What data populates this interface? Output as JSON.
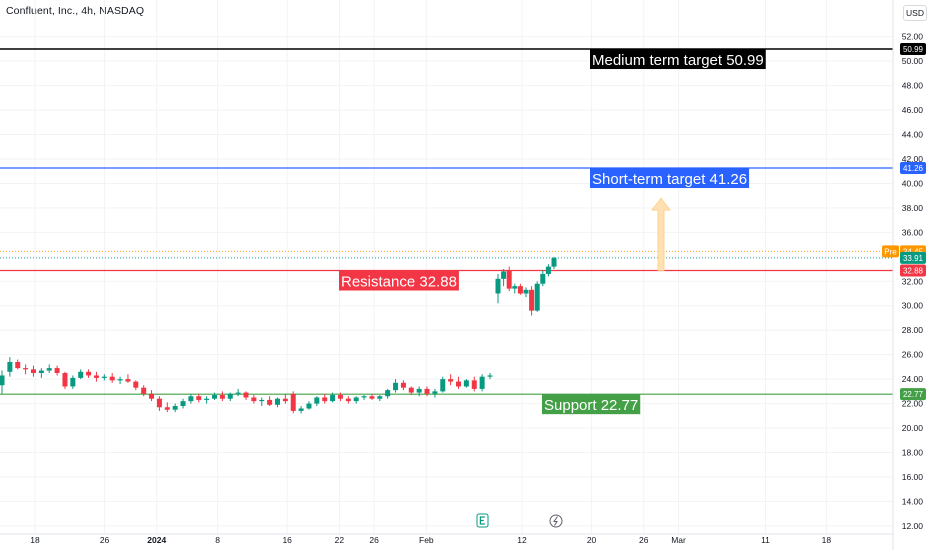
{
  "header": {
    "title": "Confluent, Inc., 4h, NASDAQ",
    "currency_button": "USD"
  },
  "chart_data": {
    "type": "candlestick",
    "title": "Confluent, Inc., 4h, NASDAQ",
    "y_ticks": [
      "52.00",
      "50.00",
      "48.00",
      "46.00",
      "44.00",
      "42.00",
      "40.00",
      "38.00",
      "36.00",
      "34.00",
      "32.00",
      "30.00",
      "28.00",
      "26.00",
      "24.00",
      "22.00",
      "20.00",
      "18.00",
      "16.00",
      "14.00",
      "12.00"
    ],
    "ylim": [
      11.5,
      53.2
    ],
    "x_labels": [
      {
        "label": "18",
        "date": "2023-12-18"
      },
      {
        "label": "26",
        "date": "2023-12-26"
      },
      {
        "label": "2024",
        "date": "2024-01-01"
      },
      {
        "label": "8",
        "date": "2024-01-08"
      },
      {
        "label": "16",
        "date": "2024-01-16"
      },
      {
        "label": "22",
        "date": "2024-01-22"
      },
      {
        "label": "26",
        "date": "2024-01-26"
      },
      {
        "label": "Feb",
        "date": "2024-02-01"
      },
      {
        "label": "12",
        "date": "2024-02-12"
      },
      {
        "label": "20",
        "date": "2024-02-20"
      },
      {
        "label": "26",
        "date": "2024-02-26"
      },
      {
        "label": "Mar",
        "date": "2024-03-01"
      },
      {
        "label": "11",
        "date": "2024-03-11"
      },
      {
        "label": "18",
        "date": "2024-03-18"
      }
    ],
    "lines": [
      {
        "name": "medium-target",
        "value": 50.99,
        "color": "#000000",
        "tag": "50.99",
        "annotation": "Medium term target 50.99"
      },
      {
        "name": "short-target",
        "value": 41.26,
        "color": "#2962ff",
        "tag": "41.26",
        "annotation": "Short-term target 41.26"
      },
      {
        "name": "resistance",
        "value": 32.88,
        "color": "#f23645",
        "tag": "32.88",
        "annotation": "Resistance 32.88"
      },
      {
        "name": "support",
        "value": 22.77,
        "color": "#43a047",
        "tag": "22.77",
        "annotation": "Support 22.77"
      }
    ],
    "price_tags": [
      {
        "name": "pre-market",
        "label": "Pre",
        "value": 34.45,
        "color": "#ff9800"
      },
      {
        "name": "last-price",
        "value": 33.91,
        "color": "#089981"
      }
    ],
    "candles": [
      {
        "o": 23.5,
        "h": 24.7,
        "l": 22.8,
        "c": 24.3
      },
      {
        "o": 24.6,
        "h": 25.8,
        "l": 24.2,
        "c": 25.4
      },
      {
        "o": 25.4,
        "h": 25.6,
        "l": 24.8,
        "c": 24.9
      },
      {
        "o": 24.9,
        "h": 25.2,
        "l": 24.4,
        "c": 24.8
      },
      {
        "o": 24.8,
        "h": 25.1,
        "l": 24.2,
        "c": 24.5
      },
      {
        "o": 24.5,
        "h": 24.9,
        "l": 24.1,
        "c": 24.7
      },
      {
        "o": 24.7,
        "h": 25.2,
        "l": 24.5,
        "c": 24.9
      },
      {
        "o": 24.9,
        "h": 25.1,
        "l": 24.3,
        "c": 24.5
      },
      {
        "o": 24.5,
        "h": 24.6,
        "l": 23.2,
        "c": 23.4
      },
      {
        "o": 23.4,
        "h": 24.3,
        "l": 23.2,
        "c": 24.1
      },
      {
        "o": 24.1,
        "h": 24.8,
        "l": 24.0,
        "c": 24.6
      },
      {
        "o": 24.6,
        "h": 24.8,
        "l": 24.1,
        "c": 24.3
      },
      {
        "o": 24.3,
        "h": 24.6,
        "l": 23.8,
        "c": 24.1
      },
      {
        "o": 24.1,
        "h": 24.4,
        "l": 23.9,
        "c": 24.2
      },
      {
        "o": 24.2,
        "h": 24.5,
        "l": 23.7,
        "c": 23.9
      },
      {
        "o": 23.9,
        "h": 24.2,
        "l": 23.6,
        "c": 24.0
      },
      {
        "o": 24.0,
        "h": 24.4,
        "l": 23.7,
        "c": 23.8
      },
      {
        "o": 23.8,
        "h": 23.9,
        "l": 23.1,
        "c": 23.3
      },
      {
        "o": 23.3,
        "h": 23.5,
        "l": 22.6,
        "c": 22.8
      },
      {
        "o": 22.8,
        "h": 23.1,
        "l": 22.2,
        "c": 22.4
      },
      {
        "o": 22.4,
        "h": 22.6,
        "l": 21.4,
        "c": 21.7
      },
      {
        "o": 21.7,
        "h": 22.1,
        "l": 21.3,
        "c": 21.5
      },
      {
        "o": 21.5,
        "h": 22.0,
        "l": 21.3,
        "c": 21.8
      },
      {
        "o": 21.8,
        "h": 22.4,
        "l": 21.6,
        "c": 22.2
      },
      {
        "o": 22.2,
        "h": 22.8,
        "l": 22.0,
        "c": 22.6
      },
      {
        "o": 22.6,
        "h": 22.8,
        "l": 22.1,
        "c": 22.3
      },
      {
        "o": 22.3,
        "h": 22.6,
        "l": 22.0,
        "c": 22.4
      },
      {
        "o": 22.4,
        "h": 22.9,
        "l": 22.3,
        "c": 22.7
      },
      {
        "o": 22.7,
        "h": 23.0,
        "l": 22.2,
        "c": 22.4
      },
      {
        "o": 22.4,
        "h": 22.9,
        "l": 22.2,
        "c": 22.8
      },
      {
        "o": 22.8,
        "h": 23.2,
        "l": 22.6,
        "c": 22.9
      },
      {
        "o": 22.9,
        "h": 23.0,
        "l": 22.3,
        "c": 22.5
      },
      {
        "o": 22.5,
        "h": 22.7,
        "l": 22.0,
        "c": 22.2
      },
      {
        "o": 22.2,
        "h": 22.5,
        "l": 21.8,
        "c": 22.3
      },
      {
        "o": 22.3,
        "h": 22.6,
        "l": 21.8,
        "c": 21.9
      },
      {
        "o": 21.9,
        "h": 22.5,
        "l": 21.7,
        "c": 22.4
      },
      {
        "o": 22.4,
        "h": 22.8,
        "l": 22.0,
        "c": 22.2
      },
      {
        "o": 22.8,
        "h": 23.0,
        "l": 21.2,
        "c": 21.4
      },
      {
        "o": 21.4,
        "h": 21.8,
        "l": 21.2,
        "c": 21.6
      },
      {
        "o": 21.6,
        "h": 22.2,
        "l": 21.5,
        "c": 22.0
      },
      {
        "o": 22.0,
        "h": 22.6,
        "l": 21.8,
        "c": 22.5
      },
      {
        "o": 22.5,
        "h": 22.8,
        "l": 22.0,
        "c": 22.2
      },
      {
        "o": 22.2,
        "h": 22.9,
        "l": 22.1,
        "c": 22.7
      },
      {
        "o": 22.7,
        "h": 22.9,
        "l": 22.2,
        "c": 22.4
      },
      {
        "o": 22.4,
        "h": 22.6,
        "l": 22.0,
        "c": 22.2
      },
      {
        "o": 22.2,
        "h": 22.6,
        "l": 22.0,
        "c": 22.5
      },
      {
        "o": 22.5,
        "h": 22.7,
        "l": 22.3,
        "c": 22.6
      },
      {
        "o": 22.6,
        "h": 22.8,
        "l": 22.3,
        "c": 22.4
      },
      {
        "o": 22.4,
        "h": 22.7,
        "l": 22.2,
        "c": 22.6
      },
      {
        "o": 22.6,
        "h": 23.2,
        "l": 22.4,
        "c": 23.1
      },
      {
        "o": 23.1,
        "h": 24.0,
        "l": 22.9,
        "c": 23.7
      },
      {
        "o": 23.7,
        "h": 23.9,
        "l": 23.1,
        "c": 23.3
      },
      {
        "o": 23.3,
        "h": 23.4,
        "l": 22.7,
        "c": 22.9
      },
      {
        "o": 22.9,
        "h": 23.4,
        "l": 22.6,
        "c": 23.2
      },
      {
        "o": 23.2,
        "h": 23.4,
        "l": 22.6,
        "c": 22.8
      },
      {
        "o": 22.8,
        "h": 23.2,
        "l": 22.5,
        "c": 23.0
      },
      {
        "o": 23.0,
        "h": 24.2,
        "l": 22.9,
        "c": 24.0
      },
      {
        "o": 24.0,
        "h": 24.4,
        "l": 23.5,
        "c": 23.8
      },
      {
        "o": 23.8,
        "h": 24.2,
        "l": 23.2,
        "c": 23.4
      },
      {
        "o": 23.4,
        "h": 24.0,
        "l": 23.3,
        "c": 23.9
      },
      {
        "o": 23.9,
        "h": 24.2,
        "l": 23.0,
        "c": 23.2
      },
      {
        "o": 23.2,
        "h": 24.4,
        "l": 23.0,
        "c": 24.2
      },
      {
        "o": 24.2,
        "h": 24.5,
        "l": 24.0,
        "c": 24.3
      },
      {
        "o": 31.0,
        "h": 32.6,
        "l": 30.2,
        "c": 32.2
      },
      {
        "o": 32.2,
        "h": 33.0,
        "l": 31.6,
        "c": 32.8
      },
      {
        "o": 32.9,
        "h": 33.2,
        "l": 31.2,
        "c": 31.4
      },
      {
        "o": 31.4,
        "h": 31.8,
        "l": 31.0,
        "c": 31.6
      },
      {
        "o": 31.6,
        "h": 31.8,
        "l": 30.9,
        "c": 31.0
      },
      {
        "o": 31.0,
        "h": 31.5,
        "l": 30.7,
        "c": 31.3
      },
      {
        "o": 31.3,
        "h": 31.6,
        "l": 29.2,
        "c": 29.6
      },
      {
        "o": 29.6,
        "h": 32.0,
        "l": 29.5,
        "c": 31.8
      },
      {
        "o": 31.8,
        "h": 32.9,
        "l": 31.6,
        "c": 32.6
      },
      {
        "o": 32.6,
        "h": 33.4,
        "l": 32.4,
        "c": 33.2
      },
      {
        "o": 33.2,
        "h": 34.0,
        "l": 33.0,
        "c": 33.91
      }
    ]
  }
}
